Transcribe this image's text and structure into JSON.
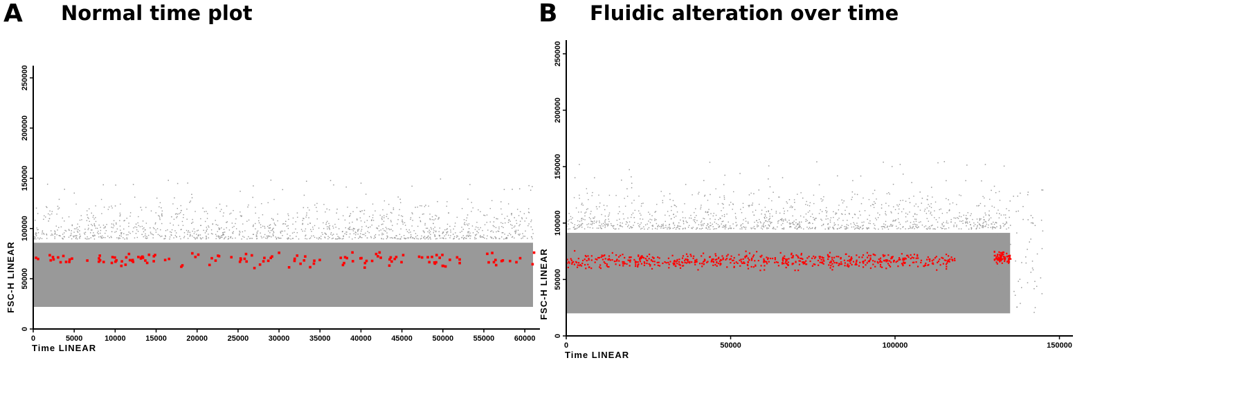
{
  "panels": {
    "A": {
      "letter": "A",
      "title": "Normal time plot"
    },
    "B": {
      "letter": "B",
      "title": "Fluidic alteration over time"
    }
  },
  "colors": {
    "population": "#999999",
    "highlight": "#ff0000",
    "axis": "#000000"
  },
  "chart_data": [
    {
      "type": "scatter",
      "title": "Normal time plot",
      "xlabel": "Time LINEAR",
      "ylabel": "FSC-H LINEAR",
      "xlim": [
        0,
        61000
      ],
      "ylim": [
        0,
        262144
      ],
      "xticks": [
        0,
        5000,
        10000,
        15000,
        20000,
        25000,
        30000,
        35000,
        40000,
        45000,
        50000,
        55000,
        60000
      ],
      "yticks": [
        0,
        50000,
        100000,
        150000,
        200000,
        250000
      ],
      "grid": false,
      "series": [
        {
          "color": "#999999",
          "x_range": [
            0,
            61000
          ],
          "y_range": [
            22000,
            90000
          ],
          "density": "dense"
        },
        {
          "color": "#ff0000",
          "x_range": [
            0,
            61000
          ],
          "y_range": [
            60000,
            80000
          ],
          "center": 70000,
          "density": "sparse"
        }
      ]
    },
    {
      "type": "scatter",
      "title": "Fluidic alteration over time",
      "xlabel": "Time LINEAR",
      "ylabel": "FSC-H LINEAR",
      "xlim": [
        0,
        152000
      ],
      "ylim": [
        0,
        262144
      ],
      "xticks": [
        0,
        50000,
        100000,
        150000
      ],
      "yticks": [
        0,
        50000,
        100000,
        150000,
        200000,
        250000
      ],
      "grid": false,
      "series": [
        {
          "color": "#999999",
          "x_range": [
            0,
            135000
          ],
          "y_range": [
            20000,
            95000
          ],
          "density": "dense"
        },
        {
          "color": "#999999",
          "x_range": [
            130000,
            145000
          ],
          "y_range": [
            20000,
            130000
          ],
          "density": "spread"
        },
        {
          "color": "#ff0000",
          "x_range": [
            0,
            118000
          ],
          "y_range": [
            58000,
            78000
          ],
          "center": 67000,
          "density": "medium"
        },
        {
          "color": "#ff0000",
          "x_range": [
            130000,
            135000
          ],
          "y_range": [
            62000,
            78000
          ],
          "center": 70000,
          "density": "dense"
        }
      ]
    }
  ]
}
